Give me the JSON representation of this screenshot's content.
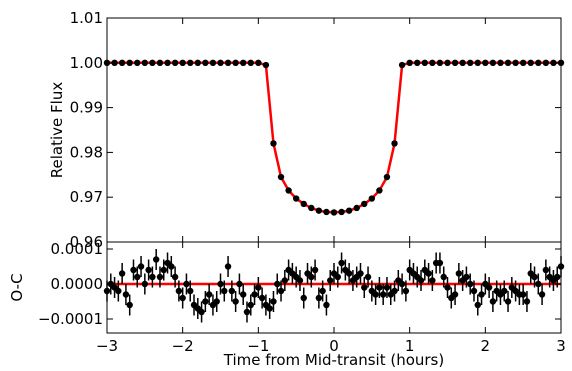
{
  "chart_data": [
    {
      "type": "scatter",
      "panel": "top",
      "ylabel": "Relative Flux",
      "xlim": [
        -3,
        3
      ],
      "ylim": [
        0.96,
        1.01
      ],
      "yticks": [
        0.96,
        0.97,
        0.98,
        0.99,
        1.0,
        1.01
      ],
      "ytick_labels": [
        "0.96",
        "0.97",
        "0.98",
        "0.99",
        "1.00",
        "1.01"
      ],
      "model_color": "#ff0000",
      "point_color": "#000000",
      "x": [
        -3.0,
        -2.9,
        -2.8,
        -2.7,
        -2.6,
        -2.5,
        -2.4,
        -2.3,
        -2.2,
        -2.1,
        -2.0,
        -1.9,
        -1.8,
        -1.7,
        -1.6,
        -1.5,
        -1.4,
        -1.3,
        -1.2,
        -1.1,
        -1.0,
        -0.9,
        -0.8,
        -0.7,
        -0.6,
        -0.5,
        -0.4,
        -0.3,
        -0.2,
        -0.1,
        0.0,
        0.1,
        0.2,
        0.3,
        0.4,
        0.5,
        0.6,
        0.7,
        0.8,
        0.9,
        1.0,
        1.1,
        1.2,
        1.3,
        1.4,
        1.5,
        1.6,
        1.7,
        1.8,
        1.9,
        2.0,
        2.1,
        2.2,
        2.3,
        2.4,
        2.5,
        2.6,
        2.7,
        2.8,
        2.9,
        3.0
      ],
      "y": [
        1.0,
        1.0,
        1.0,
        1.0,
        1.0,
        1.0,
        1.0,
        1.0,
        1.0,
        1.0,
        1.0,
        1.0,
        1.0,
        1.0,
        1.0,
        1.0,
        1.0,
        1.0,
        1.0,
        1.0,
        1.0,
        0.9995,
        0.982,
        0.9745,
        0.9715,
        0.9697,
        0.9685,
        0.9676,
        0.967,
        0.9667,
        0.9666,
        0.9667,
        0.967,
        0.9676,
        0.9685,
        0.9697,
        0.9715,
        0.9745,
        0.982,
        0.9995,
        1.0,
        1.0,
        1.0,
        1.0,
        1.0,
        1.0,
        1.0,
        1.0,
        1.0,
        1.0,
        1.0,
        1.0,
        1.0,
        1.0,
        1.0,
        1.0,
        1.0,
        1.0,
        1.0,
        1.0,
        1.0
      ]
    },
    {
      "type": "scatter",
      "panel": "bottom",
      "xlabel": "Time from Mid-transit (hours)",
      "ylabel": "O-C",
      "xlim": [
        -3,
        3
      ],
      "ylim": [
        -0.00014,
        0.00012
      ],
      "xticks": [
        -3,
        -2,
        -1,
        0,
        1,
        2,
        3
      ],
      "xtick_labels": [
        "−3",
        "−2",
        "−1",
        "0",
        "1",
        "2",
        "3"
      ],
      "yticks": [
        -0.0001,
        0.0,
        0.0001
      ],
      "ytick_labels": [
        "−0.0001",
        "0.0000",
        "0.0001"
      ],
      "error": 3e-05,
      "x": [
        -3.0,
        -2.95,
        -2.9,
        -2.85,
        -2.8,
        -2.75,
        -2.7,
        -2.65,
        -2.6,
        -2.55,
        -2.5,
        -2.45,
        -2.4,
        -2.35,
        -2.3,
        -2.25,
        -2.2,
        -2.15,
        -2.1,
        -2.05,
        -2.0,
        -1.95,
        -1.9,
        -1.85,
        -1.8,
        -1.75,
        -1.7,
        -1.65,
        -1.6,
        -1.55,
        -1.5,
        -1.45,
        -1.4,
        -1.35,
        -1.3,
        -1.25,
        -1.2,
        -1.15,
        -1.1,
        -1.05,
        -1.0,
        -0.95,
        -0.9,
        -0.85,
        -0.8,
        -0.75,
        -0.7,
        -0.65,
        -0.6,
        -0.55,
        -0.5,
        -0.45,
        -0.4,
        -0.35,
        -0.3,
        -0.25,
        -0.2,
        -0.15,
        -0.1,
        -0.05,
        0.0,
        0.05,
        0.1,
        0.15,
        0.2,
        0.25,
        0.3,
        0.35,
        0.4,
        0.45,
        0.5,
        0.55,
        0.6,
        0.65,
        0.7,
        0.75,
        0.8,
        0.85,
        0.9,
        0.95,
        1.0,
        1.05,
        1.1,
        1.15,
        1.2,
        1.25,
        1.3,
        1.35,
        1.4,
        1.45,
        1.5,
        1.55,
        1.6,
        1.65,
        1.7,
        1.75,
        1.8,
        1.85,
        1.9,
        1.95,
        2.0,
        2.05,
        2.1,
        2.15,
        2.2,
        2.25,
        2.3,
        2.35,
        2.4,
        2.45,
        2.5,
        2.55,
        2.6,
        2.65,
        2.7,
        2.75,
        2.8,
        2.85,
        2.9,
        2.95,
        3.0
      ],
      "y": [
        -2e-05,
        0.0,
        -1e-05,
        -2e-05,
        3e-05,
        -3e-05,
        -6e-05,
        4e-05,
        2e-05,
        5e-05,
        0.0,
        4e-05,
        2e-05,
        7e-05,
        2e-05,
        4e-05,
        6e-05,
        5e-05,
        2e-05,
        -2e-05,
        -4e-05,
        0.0,
        -2e-05,
        -6e-05,
        -7e-05,
        -8e-05,
        -5e-05,
        -3e-05,
        -6e-05,
        -5e-05,
        0.0,
        -2e-05,
        5e-05,
        -2e-05,
        -5e-05,
        0.0,
        -3e-05,
        -8e-05,
        -6e-05,
        -3e-05,
        -1e-05,
        -4e-05,
        -6e-05,
        -7e-05,
        -5e-05,
        0.0,
        -2e-05,
        1e-05,
        4e-05,
        3e-05,
        2e-05,
        1e-05,
        -4e-05,
        3e-05,
        2e-05,
        4e-05,
        -4e-05,
        -2e-05,
        -6e-05,
        1e-05,
        3e-05,
        2e-05,
        6e-05,
        4e-05,
        3e-05,
        1e-05,
        2e-05,
        3e-05,
        -1e-05,
        2e-05,
        -2e-05,
        -3e-05,
        -1e-05,
        -3e-05,
        -1e-05,
        -3e-05,
        -2e-05,
        1e-05,
        0.0,
        -2e-05,
        4e-05,
        3e-05,
        2e-05,
        1e-05,
        4e-05,
        3e-05,
        1e-05,
        6e-05,
        6e-05,
        2e-05,
        -1e-05,
        -4e-05,
        -3e-05,
        3e-05,
        1e-05,
        2e-05,
        0.0,
        -2e-05,
        -6e-05,
        -3e-05,
        0.0,
        -1e-05,
        -5e-05,
        -2e-05,
        -3e-05,
        -2e-05,
        -5e-05,
        -1e-05,
        -2e-05,
        -3e-05,
        -3e-05,
        -5e-05,
        3e-05,
        2e-05,
        0.0,
        -3e-05,
        4e-05,
        2e-05,
        1e-05,
        2e-05,
        5e-05
      ]
    }
  ]
}
